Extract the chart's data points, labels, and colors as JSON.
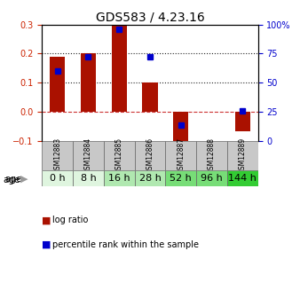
{
  "title": "GDS583 / 4.23.16",
  "categories": [
    "GSM12883",
    "GSM12884",
    "GSM12885",
    "GSM12886",
    "GSM12887",
    "GSM12888",
    "GSM12889"
  ],
  "age_labels": [
    "0 h",
    "8 h",
    "16 h",
    "28 h",
    "52 h",
    "96 h",
    "144 h"
  ],
  "age_colors": [
    "#dff5df",
    "#dff5df",
    "#b0e8b0",
    "#b0e8b0",
    "#77dd77",
    "#77dd77",
    "#33cc33"
  ],
  "log_ratio": [
    0.19,
    0.2,
    0.3,
    0.1,
    -0.13,
    0.0,
    -0.065
  ],
  "percentile_rank_pct": [
    60,
    72,
    96,
    72,
    14,
    0,
    26
  ],
  "ylim_left": [
    -0.1,
    0.3
  ],
  "ylim_right": [
    0,
    100
  ],
  "yticks_left": [
    -0.1,
    0.0,
    0.1,
    0.2,
    0.3
  ],
  "yticks_right": [
    0,
    25,
    50,
    75,
    100
  ],
  "bar_color": "#aa1100",
  "dot_color": "#0000cc",
  "zero_line_color": "#cc3333",
  "dotted_line_color": "#222222",
  "bg_color": "#ffffff",
  "title_fontsize": 10,
  "tick_fontsize": 7,
  "gsm_fontsize": 5.5,
  "age_label_fontsize": 8,
  "legend_fontsize": 7
}
